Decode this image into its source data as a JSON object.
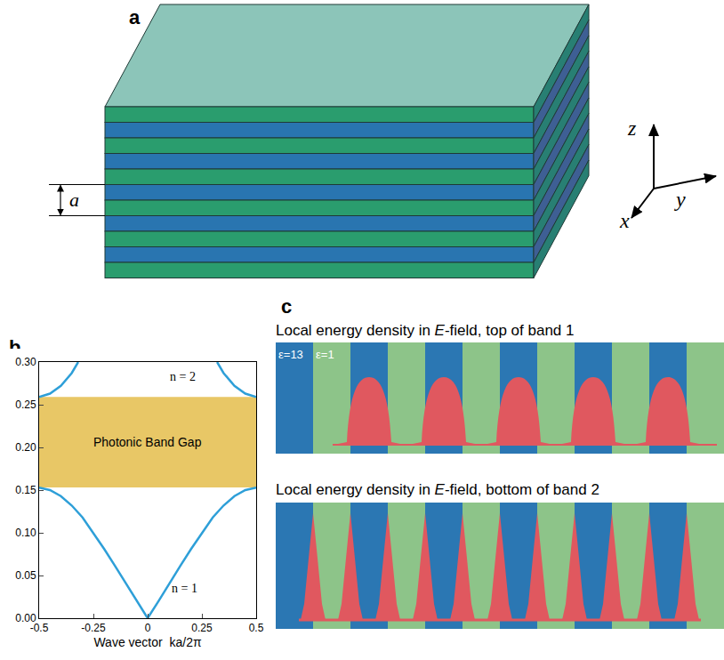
{
  "panel_a": {
    "letter": "a",
    "period_label": "a",
    "axis_labels": {
      "x": "x",
      "y": "y",
      "z": "z"
    }
  },
  "chart_data": {
    "letter": "b",
    "type": "line",
    "x_label": "Wave vector  ka/2π",
    "series": [
      {
        "name": "n = 1",
        "color": "#2e9fd8",
        "x": [
          -0.5,
          -0.45,
          -0.4,
          -0.35,
          -0.3,
          -0.25,
          -0.2,
          -0.15,
          -0.1,
          -0.05,
          0,
          0.05,
          0.1,
          0.15,
          0.2,
          0.25,
          0.3,
          0.35,
          0.4,
          0.45,
          0.5
        ],
        "values": [
          0.153,
          0.15,
          0.143,
          0.132,
          0.118,
          0.1,
          0.081,
          0.061,
          0.041,
          0.02,
          0,
          0.02,
          0.041,
          0.061,
          0.081,
          0.1,
          0.118,
          0.132,
          0.143,
          0.15,
          0.153
        ]
      },
      {
        "name": "n = 2",
        "color": "#2e9fd8",
        "x": [
          -0.5,
          -0.45,
          -0.4,
          -0.35,
          -0.32,
          0,
          0.32,
          0.35,
          0.4,
          0.45,
          0.5
        ],
        "values": [
          0.259,
          0.263,
          0.272,
          0.287,
          0.3,
          null,
          0.3,
          0.287,
          0.272,
          0.263,
          0.259
        ]
      }
    ],
    "band_gap": {
      "label": "Photonic Band Gap",
      "range": [
        0.153,
        0.259
      ],
      "color": "#e8c766"
    },
    "xlim": [
      -0.5,
      0.5
    ],
    "xticks": [
      -0.5,
      -0.25,
      0,
      0.25,
      0.5
    ],
    "ylim": [
      0,
      0.3
    ],
    "yticks": [
      {
        "value": 0,
        "label": "0.00"
      },
      {
        "value": 0.05,
        "label": "0.05"
      },
      {
        "value": 0.1,
        "label": "0.10"
      },
      {
        "value": 0.15,
        "label": "0.15"
      },
      {
        "value": 0.2,
        "label": "0.20"
      },
      {
        "value": 0.25,
        "label": "0.25"
      },
      {
        "value": 0.3,
        "label": "0.30"
      }
    ],
    "grid": false
  },
  "panel_c": {
    "letter": "c",
    "rows": [
      {
        "title": "Local energy density in E-field, top of band 1",
        "labels": [
          "ε=13",
          "ε=1"
        ]
      },
      {
        "title": "Local energy density in E-field, bottom of band 2"
      }
    ]
  }
}
